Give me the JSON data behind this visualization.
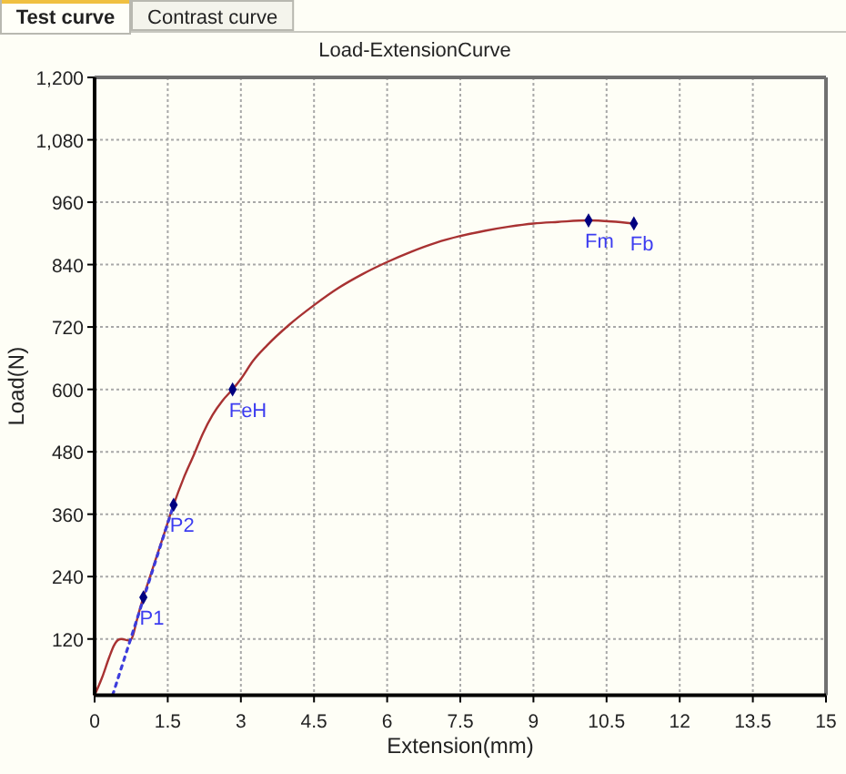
{
  "chart_data": {
    "type": "line",
    "title": "Load-ExtensionCurve",
    "xlabel": "Extension(mm)",
    "ylabel": "Load(N)",
    "xlim": [
      0,
      15
    ],
    "ylim": [
      12,
      1200
    ],
    "xticks": [
      0,
      1.5,
      3,
      4.5,
      6,
      7.5,
      9,
      10.5,
      12,
      13.5,
      15
    ],
    "yticks": [
      120,
      240,
      360,
      480,
      600,
      720,
      840,
      960,
      {
        "value": 1080,
        "label": "1,080"
      },
      {
        "value": 1200,
        "label": "1,200"
      }
    ],
    "grid": true,
    "series": [
      {
        "type": "line",
        "color": "#a83232",
        "x": [
          0,
          0.15,
          0.3,
          0.4,
          0.48,
          0.55,
          0.65,
          0.72,
          0.78,
          0.85,
          0.92,
          1.0,
          1.2,
          1.4,
          1.62,
          1.82,
          2.04,
          2.22,
          2.42,
          2.62,
          2.83,
          3.0,
          3.25,
          3.54,
          4.0,
          4.5,
          5.0,
          5.5,
          6.0,
          6.5,
          7.0,
          7.5,
          8.0,
          8.5,
          9.0,
          9.5,
          10.13,
          10.6,
          11.06
        ],
        "values": [
          12,
          45,
          85,
          108,
          118,
          120,
          118,
          117,
          125,
          150,
          175,
          200,
          258,
          315,
          378,
          428,
          475,
          515,
          551,
          578,
          600,
          620,
          655,
          685,
          725,
          762,
          795,
          822,
          845,
          865,
          882,
          895,
          905,
          913,
          919,
          922,
          925,
          923,
          919
        ]
      },
      {
        "type": "line",
        "color": "#3c3cdc",
        "line_style": "dotted",
        "x": [
          0.37,
          1.62
        ],
        "values": [
          12,
          378
        ]
      },
      {
        "type": "scatter",
        "color": "#000080",
        "marker": "diamond",
        "x": [
          1.0,
          1.62,
          2.83,
          10.13,
          11.06
        ],
        "values": [
          200,
          378,
          600,
          925,
          919
        ]
      }
    ],
    "annotations": [
      {
        "text": "P1",
        "x": 1.0,
        "y": 200
      },
      {
        "text": "P2",
        "x": 1.62,
        "y": 378
      },
      {
        "text": "FeH",
        "x": 2.83,
        "y": 600
      },
      {
        "text": "Fm",
        "x": 10.13,
        "y": 925
      },
      {
        "text": "Fb",
        "x": 11.06,
        "y": 919
      },
      "Test curve",
      "Contrast curve"
    ]
  }
}
